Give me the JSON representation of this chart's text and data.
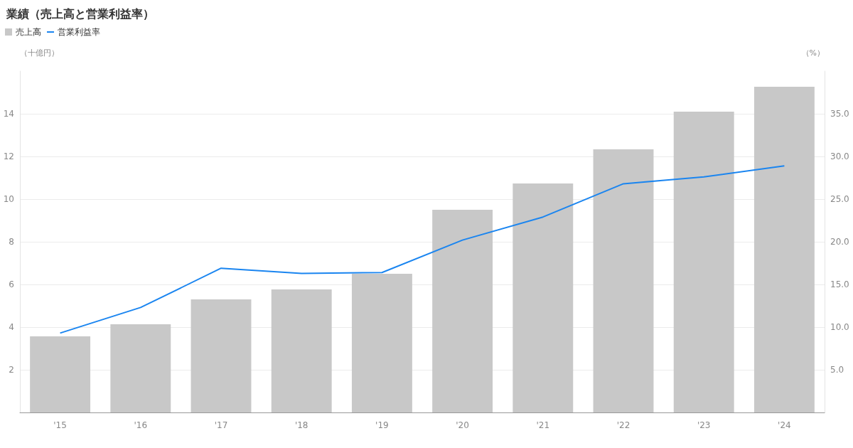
{
  "chart_data": {
    "type": "bar",
    "title": "業績（売上高と営業利益率）",
    "ylabel": "（十億円）",
    "y2label": "（%）",
    "categories": [
      "'15",
      "'16",
      "'17",
      "'18",
      "'19",
      "'20",
      "'21",
      "'22",
      "'23",
      "'24"
    ],
    "series": [
      {
        "name": "売上高",
        "color": "#c8c8c8",
        "values": [
          3.57,
          4.13,
          5.3,
          5.77,
          6.5,
          9.5,
          10.73,
          12.33,
          14.1,
          15.27
        ]
      },
      {
        "name": "営業利益率",
        "type": "line",
        "axis": "y2",
        "color": "#1a85f0",
        "values": [
          9.3,
          12.3,
          16.9,
          16.3,
          16.4,
          20.2,
          22.9,
          26.8,
          27.6,
          28.9
        ]
      }
    ],
    "ylim": [
      0,
      16
    ],
    "yticks": [
      2,
      4,
      6,
      8,
      10,
      12,
      14
    ],
    "y2lim": [
      0,
      40
    ],
    "y2ticks": [
      {
        "value": 5,
        "label": "5.0"
      },
      {
        "value": 10,
        "label": "10.0"
      },
      {
        "value": 15,
        "label": "15.0"
      },
      {
        "value": 20,
        "label": "20.0"
      },
      {
        "value": 25,
        "label": "25.0"
      },
      {
        "value": 30,
        "label": "30.0"
      },
      {
        "value": 35,
        "label": "35.0"
      }
    ],
    "grid": "y",
    "legend": "top left",
    "marker": "none",
    "line_style": "solid"
  }
}
